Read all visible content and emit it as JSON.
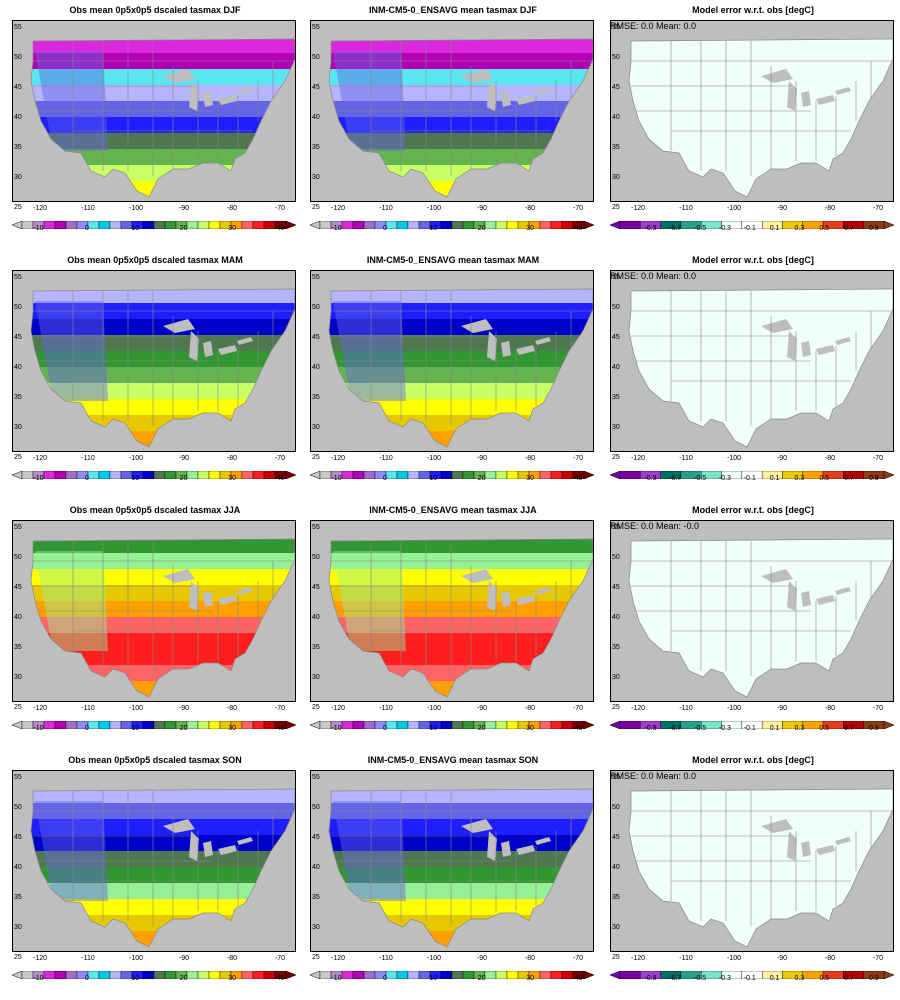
{
  "figure": {
    "seasons": [
      "DJF",
      "MAM",
      "JJA",
      "SON"
    ],
    "x_ticks": [
      "-120",
      "-110",
      "-100",
      "-90",
      "-80",
      "-70"
    ],
    "y_ticks": [
      "55",
      "50",
      "45",
      "40",
      "35",
      "30",
      "25"
    ],
    "temp_colorbar": {
      "colors": [
        "#c8c8c8",
        "#b48cc8",
        "#dc28dc",
        "#b400b4",
        "#a06ec8",
        "#8c8cff",
        "#5ae6f0",
        "#00c8e6",
        "#b4b4ff",
        "#6464e6",
        "#1e1eff",
        "#0000c8",
        "#507850",
        "#329632",
        "#64b450",
        "#96f096",
        "#c8ff64",
        "#ffff00",
        "#e6c800",
        "#ffa000",
        "#ff6464",
        "#ff1e1e",
        "#c80000",
        "#780000"
      ],
      "labels": [
        "-10",
        "0",
        "10",
        "20",
        "30",
        "40"
      ]
    },
    "error_colorbar": {
      "colors": [
        "#7800a0",
        "#a03cd2",
        "#006e64",
        "#28a08c",
        "#78e6c8",
        "#f0fff8",
        "#ffffff",
        "#fff0a0",
        "#f0c800",
        "#ffa000",
        "#e63c1e",
        "#b40000",
        "#8c3c14"
      ],
      "labels": [
        "-0.9",
        "-0.7",
        "-0.5",
        "-0.3",
        "-0.1",
        "0.1",
        "0.3",
        "0.5",
        "0.7",
        "0.9"
      ]
    },
    "rows": [
      {
        "season": "DJF",
        "obs_title": "Obs mean 0p5x0p5 dscaled tasmax DJF",
        "model_title": "INM-CM5-0_ENSAVG mean tasmax DJF",
        "error_title": "Model error w.r.t. obs [degC]",
        "error_stats": "RMSE: 0.0  Mean: 0.0"
      },
      {
        "season": "MAM",
        "obs_title": "Obs mean 0p5x0p5 dscaled tasmax MAM",
        "model_title": "INM-CM5-0_ENSAVG mean tasmax MAM",
        "error_title": "Model error w.r.t. obs [degC]",
        "error_stats": "RMSE: 0.0  Mean: 0.0"
      },
      {
        "season": "JJA",
        "obs_title": "Obs mean 0p5x0p5 dscaled tasmax JJA",
        "model_title": "INM-CM5-0_ENSAVG mean tasmax JJA",
        "error_title": "Model error w.r.t. obs [degC]",
        "error_stats": "RMSE: 0.0  Mean: -0.0"
      },
      {
        "season": "SON",
        "obs_title": "Obs mean 0p5x0p5 dscaled tasmax SON",
        "model_title": "INM-CM5-0_ENSAVG mean tasmax SON",
        "error_title": "Model error w.r.t. obs [degC]",
        "error_stats": "RMSE: 0.0  Mean: 0.0"
      }
    ],
    "map_colors": {
      "ocean": "#bebebe",
      "land_error": "#f0fff8",
      "state_lines": "#888888",
      "lakes": "#bebebe"
    }
  }
}
